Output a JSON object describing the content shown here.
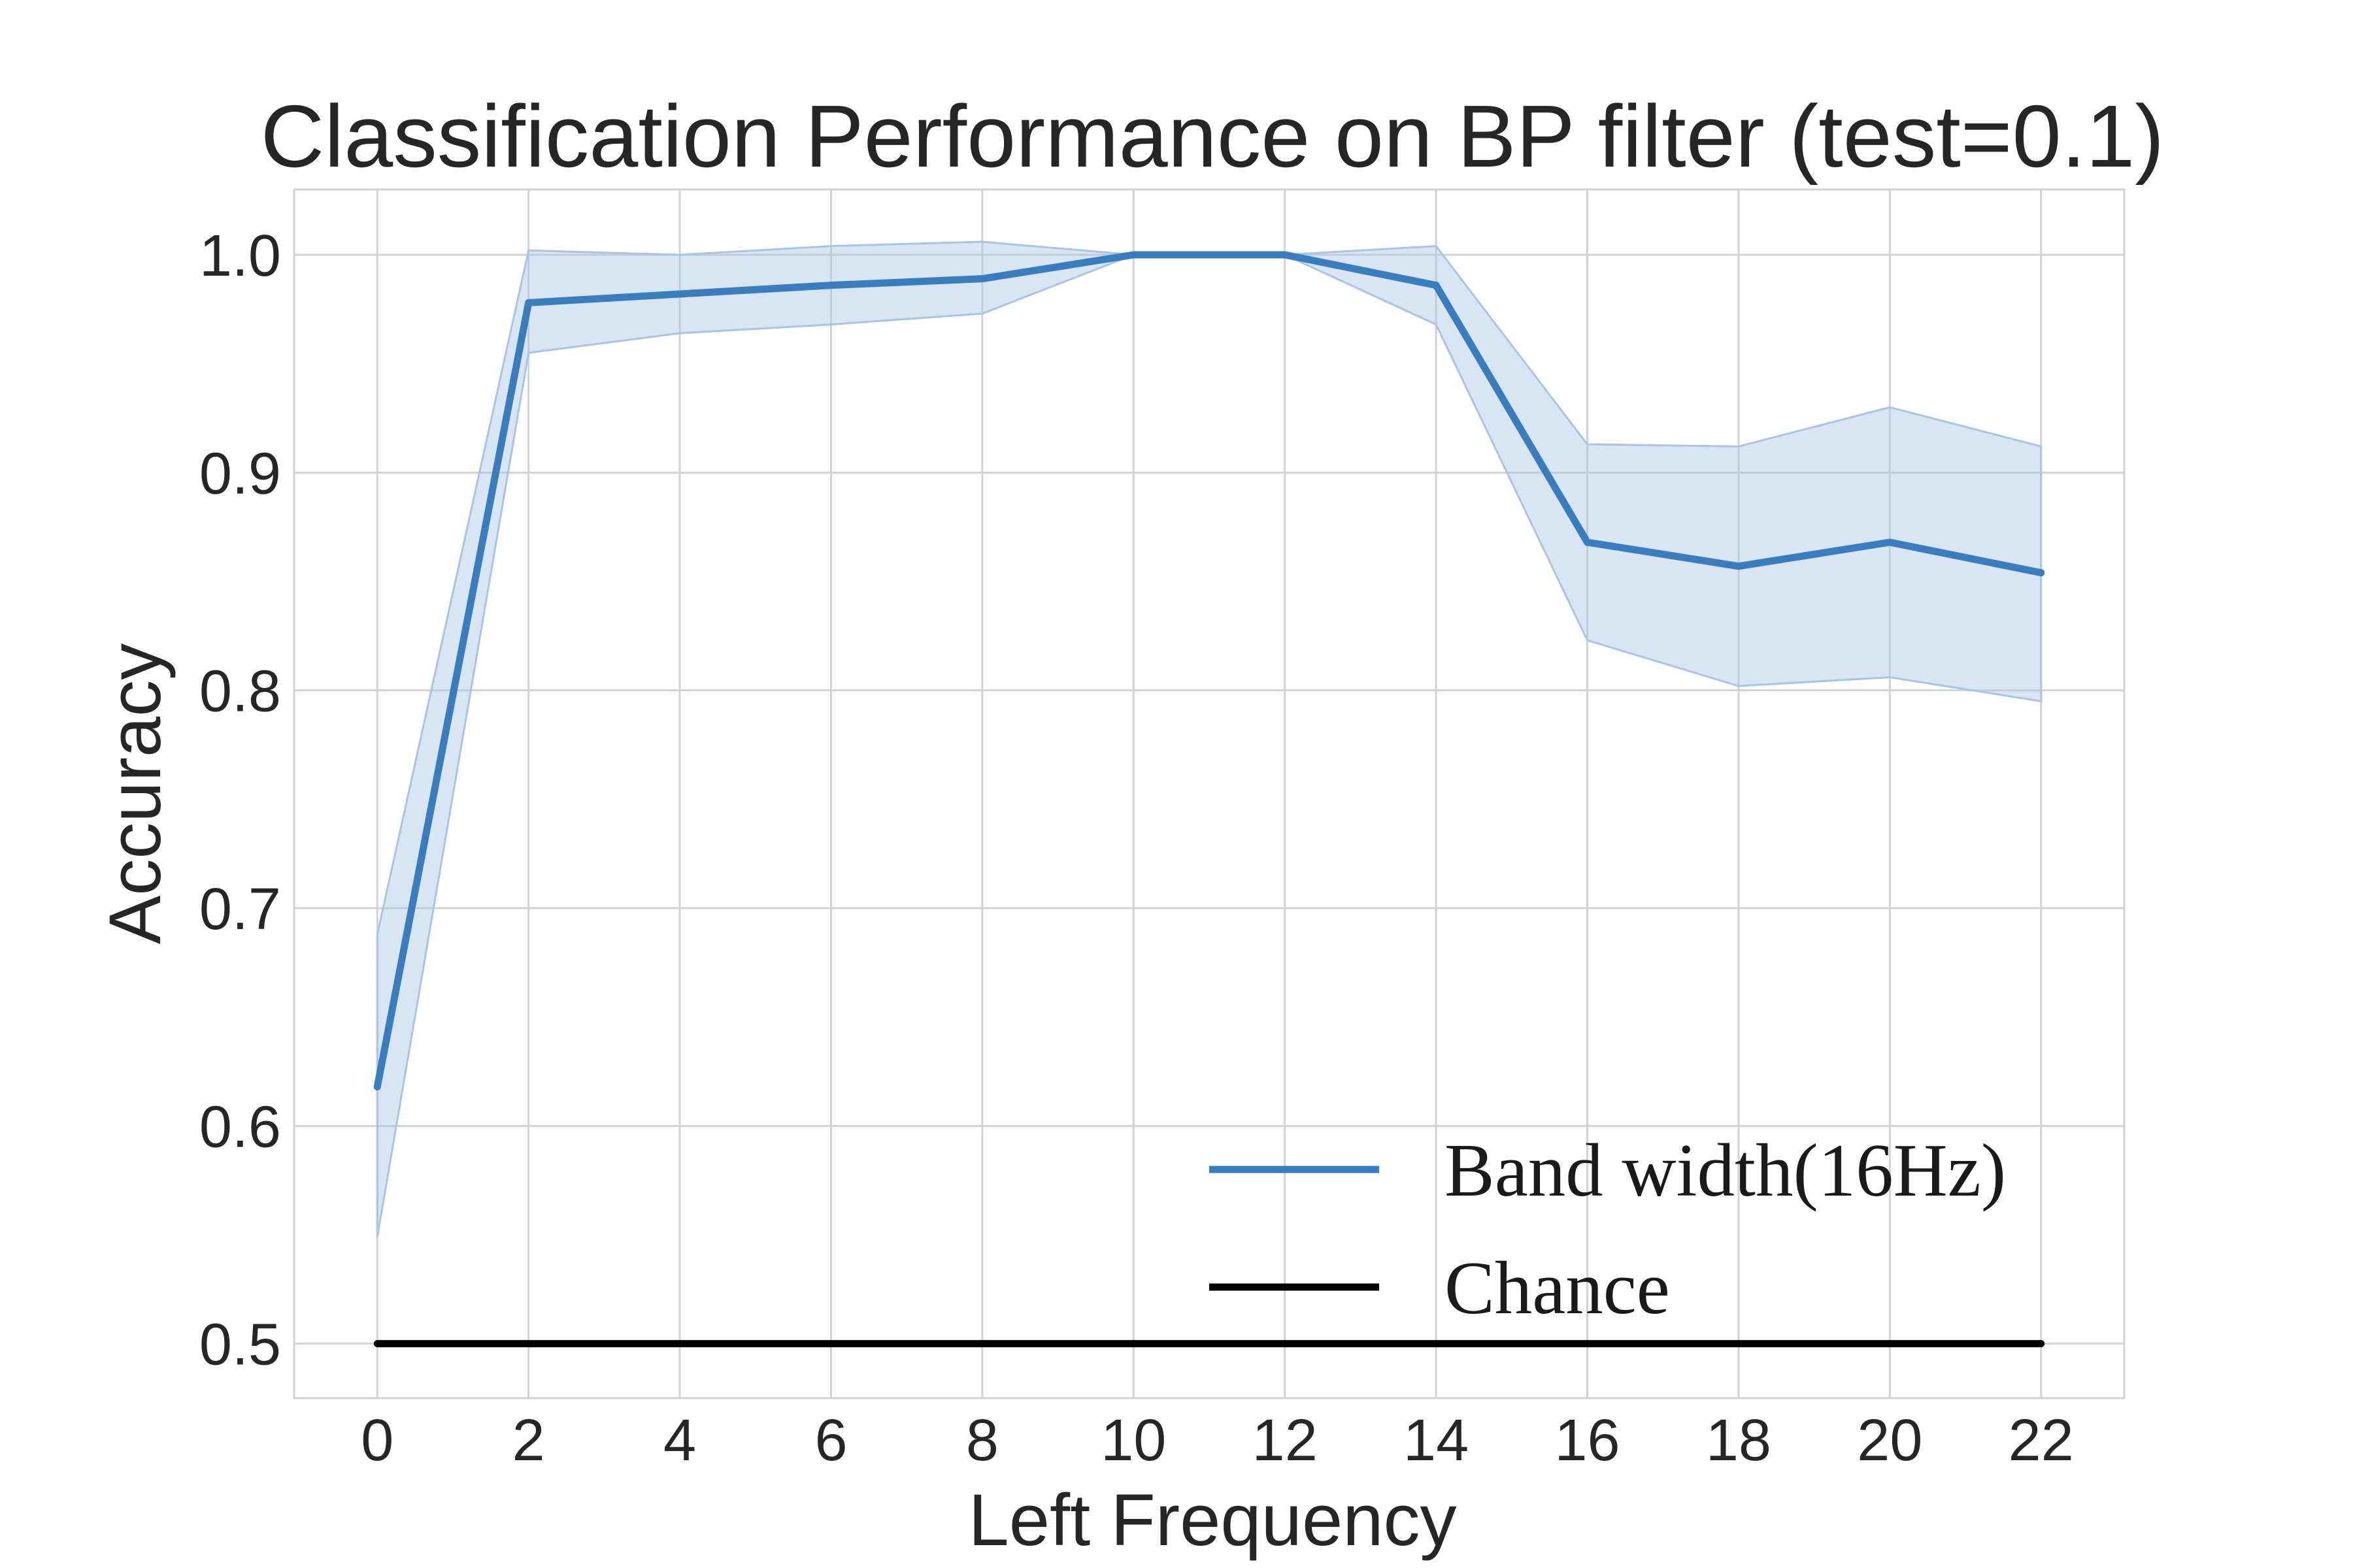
{
  "chart_data": {
    "type": "line",
    "title": "Classification Performance on BP filter (test=0.1)",
    "xlabel": "Left Frequency",
    "ylabel": "Accuracy",
    "xlim": [
      -1.1,
      23.1
    ],
    "ylim": [
      0.475,
      1.03
    ],
    "x_ticks": [
      "0",
      "2",
      "4",
      "6",
      "8",
      "10",
      "12",
      "14",
      "16",
      "18",
      "20",
      "22"
    ],
    "y_ticks": [
      "0.5",
      "0.6",
      "0.7",
      "0.8",
      "0.9",
      "1.0"
    ],
    "grid": true,
    "legend_position": "lower-right",
    "series": [
      {
        "name": "Band width(16Hz)",
        "color": "#3a7dbf",
        "band_color": "#a9c5e2",
        "x": [
          0,
          2,
          4,
          6,
          8,
          10,
          12,
          14,
          16,
          18,
          20,
          22
        ],
        "y": [
          0.618,
          0.978,
          0.982,
          0.986,
          0.989,
          1.0,
          1.0,
          0.986,
          0.868,
          0.857,
          0.868,
          0.854
        ],
        "lower": [
          0.549,
          0.955,
          0.964,
          0.968,
          0.973,
          1.0,
          1.0,
          0.968,
          0.823,
          0.802,
          0.806,
          0.795
        ],
        "upper": [
          0.688,
          1.002,
          1.0,
          1.004,
          1.006,
          1.0,
          1.0,
          1.004,
          0.913,
          0.912,
          0.93,
          0.912
        ]
      },
      {
        "name": "Chance",
        "color": "#000000",
        "x": [
          0,
          22
        ],
        "y": [
          0.5,
          0.5
        ]
      }
    ]
  }
}
